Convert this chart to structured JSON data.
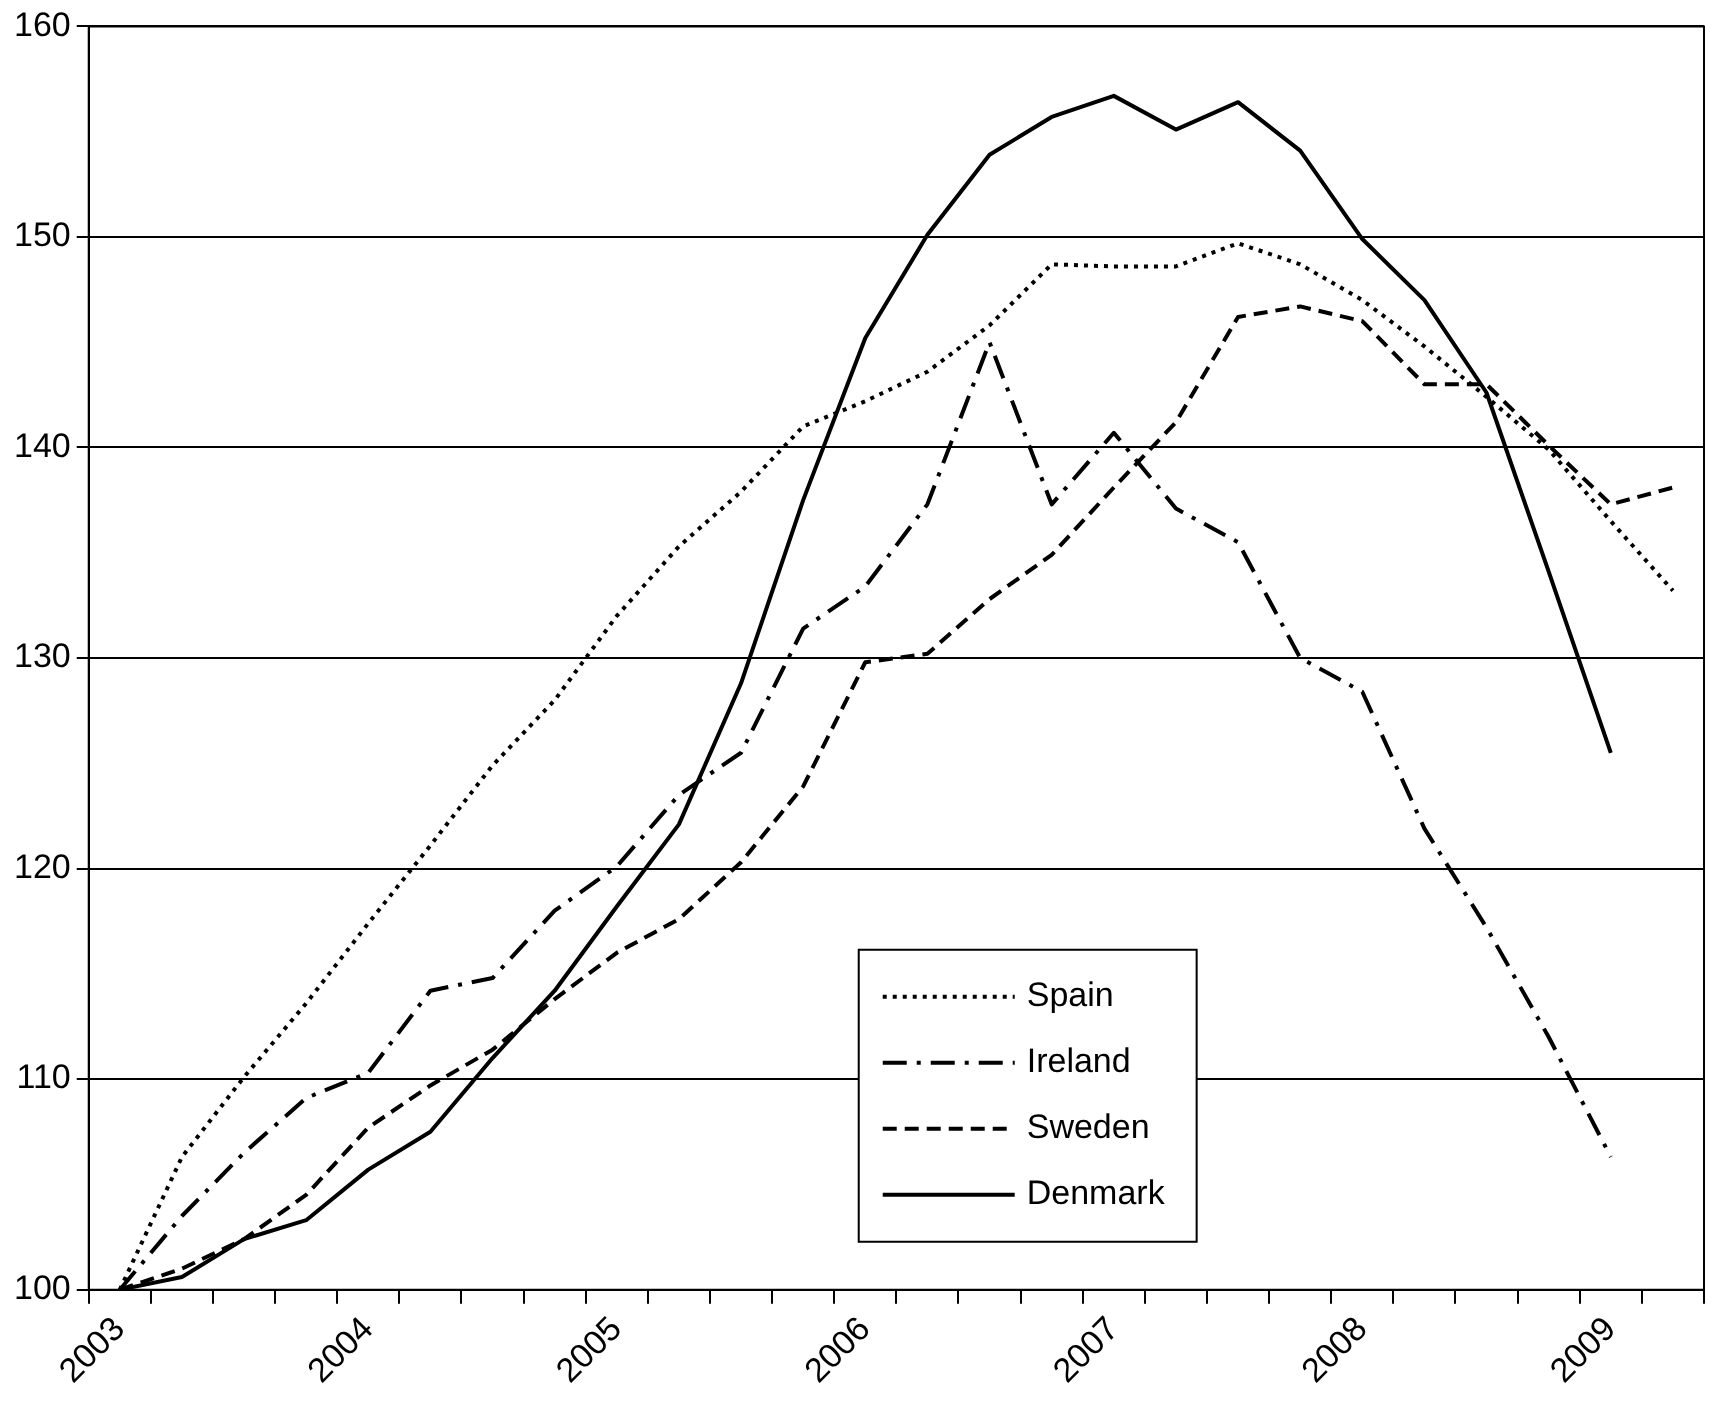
{
  "chart_data": {
    "type": "line",
    "categories": [
      "2003",
      null,
      null,
      null,
      "2004",
      null,
      null,
      null,
      "2005",
      null,
      null,
      null,
      "2006",
      null,
      null,
      null,
      "2007",
      null,
      null,
      null,
      "2008",
      null,
      null,
      null,
      "2009",
      null
    ],
    "series": [
      {
        "name": "Spain",
        "color": "#000000",
        "line_style": "dotted",
        "values": [
          100,
          106.3,
          110.1,
          113.6,
          117.4,
          121.1,
          124.9,
          128.0,
          132.0,
          135.3,
          137.9,
          141.0,
          142.2,
          143.6,
          145.8,
          148.7,
          148.6,
          148.6,
          149.7,
          148.7,
          147.0,
          144.8,
          142.4,
          139.9,
          136.5,
          133.2
        ]
      },
      {
        "name": "Ireland",
        "color": "#000000",
        "line_style": "dashdot",
        "values": [
          100,
          103.5,
          106.5,
          109.1,
          110.3,
          114.2,
          114.8,
          118.0,
          120.1,
          123.5,
          125.5,
          131.4,
          133.4,
          137.3,
          145.0,
          137.3,
          140.7,
          137.1,
          135.5,
          130.0,
          128.4,
          121.9,
          117.2,
          112.0,
          106.3,
          null
        ]
      },
      {
        "name": "Sweden",
        "color": "#000000",
        "line_style": "dashed",
        "values": [
          100,
          101.0,
          102.4,
          104.5,
          107.7,
          109.7,
          111.4,
          113.8,
          116.0,
          117.6,
          120.3,
          123.9,
          129.8,
          130.2,
          132.8,
          134.9,
          138.1,
          141.2,
          146.2,
          146.7,
          146.0,
          143.0,
          143.0,
          140.1,
          137.3,
          138.1
        ]
      },
      {
        "name": "Denmark",
        "color": "#000000",
        "line_style": "solid",
        "values": [
          100,
          100.6,
          102.4,
          103.3,
          105.7,
          107.5,
          111.0,
          114.2,
          118.2,
          122.1,
          128.8,
          137.5,
          145.2,
          150.1,
          153.9,
          155.7,
          156.7,
          155.1,
          156.4,
          154.1,
          149.9,
          147.0,
          142.6,
          134.1,
          125.5,
          null
        ]
      }
    ],
    "ylim": [
      100,
      160
    ],
    "yticks": [
      100,
      110,
      120,
      130,
      140,
      150,
      160
    ],
    "grid": "y",
    "legend": "bottom",
    "marker": "none"
  }
}
